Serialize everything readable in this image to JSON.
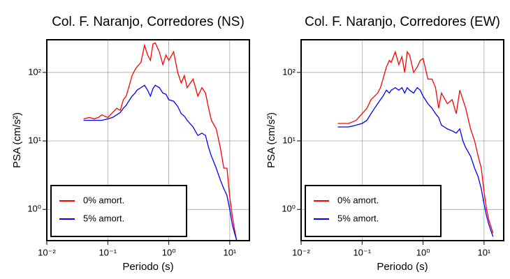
{
  "chart_data": [
    {
      "type": "line",
      "title": "Col. F. Naranjo, Corredores (NS)",
      "x_label": "Periodo (s)",
      "y_label": "PSA (cm/s²)",
      "log_x": true,
      "log_y": true,
      "grid": true,
      "legend": "lower-left",
      "xlim": [
        0.01,
        21
      ],
      "ylim": [
        0.35,
        300
      ],
      "xticks": [
        {
          "value": 0.01,
          "label": "10⁻²"
        },
        {
          "value": 0.1,
          "label": "10⁻¹"
        },
        {
          "value": 1,
          "label": "10⁰"
        },
        {
          "value": 10,
          "label": "10¹"
        }
      ],
      "yticks": [
        {
          "value": 1,
          "label": "10⁰"
        },
        {
          "value": 10,
          "label": "10¹"
        },
        {
          "value": 100,
          "label": "10²"
        }
      ],
      "x": [
        0.04,
        0.05,
        0.06,
        0.07,
        0.08,
        0.1,
        0.12,
        0.14,
        0.16,
        0.18,
        0.2,
        0.22,
        0.25,
        0.28,
        0.3,
        0.35,
        0.4,
        0.45,
        0.5,
        0.55,
        0.6,
        0.7,
        0.8,
        0.9,
        1.0,
        1.2,
        1.4,
        1.6,
        1.8,
        2.0,
        2.5,
        3,
        3.5,
        4,
        4.5,
        5,
        6,
        7,
        8,
        9,
        10,
        11,
        12,
        13
      ],
      "series": [
        {
          "name": "0% amort.",
          "color": "#ff0000",
          "values": [
            21,
            22,
            21,
            22,
            24,
            22,
            26,
            30,
            28,
            40,
            45,
            60,
            90,
            110,
            120,
            140,
            250,
            180,
            150,
            260,
            270,
            200,
            130,
            180,
            150,
            200,
            100,
            70,
            90,
            60,
            80,
            45,
            60,
            50,
            30,
            20,
            15,
            8,
            4,
            4,
            1.5,
            0.8,
            0.5,
            0.35
          ]
        },
        {
          "name": "5% amort.",
          "color": "#0000ff",
          "values": [
            20,
            20,
            20,
            20,
            20,
            21,
            22,
            24,
            26,
            30,
            33,
            38,
            45,
            50,
            55,
            60,
            65,
            55,
            45,
            58,
            65,
            60,
            50,
            48,
            40,
            38,
            32,
            25,
            23,
            20,
            16,
            12,
            13,
            12,
            8,
            6,
            4,
            2.7,
            2,
            1.6,
            1,
            0.6,
            0.45,
            0.35
          ]
        }
      ]
    },
    {
      "type": "line",
      "title": "Col. F. Naranjo, Corredores (EW)",
      "x_label": "Periodo (s)",
      "y_label": "PSA (cm/s²)",
      "log_x": true,
      "log_y": true,
      "grid": true,
      "legend": "lower-left",
      "xlim": [
        0.01,
        21
      ],
      "ylim": [
        0.35,
        300
      ],
      "xticks": [
        {
          "value": 0.01,
          "label": "10⁻²"
        },
        {
          "value": 0.1,
          "label": "10⁻¹"
        },
        {
          "value": 1,
          "label": "10⁰"
        },
        {
          "value": 10,
          "label": "10¹"
        }
      ],
      "yticks": [
        {
          "value": 1,
          "label": "10⁰"
        },
        {
          "value": 10,
          "label": "10¹"
        },
        {
          "value": 100,
          "label": "10²"
        }
      ],
      "x": [
        0.04,
        0.05,
        0.06,
        0.07,
        0.08,
        0.1,
        0.12,
        0.14,
        0.16,
        0.18,
        0.2,
        0.22,
        0.25,
        0.28,
        0.3,
        0.35,
        0.4,
        0.45,
        0.5,
        0.55,
        0.6,
        0.7,
        0.8,
        0.9,
        1.0,
        1.2,
        1.4,
        1.6,
        1.8,
        2.0,
        2.5,
        3,
        3.5,
        4,
        4.5,
        5,
        6,
        7,
        8,
        9,
        10,
        11,
        12,
        14
      ],
      "series": [
        {
          "name": "0% amort.",
          "color": "#ff0000",
          "values": [
            18,
            18,
            18,
            19,
            20,
            25,
            30,
            40,
            45,
            50,
            60,
            80,
            120,
            150,
            140,
            200,
            130,
            170,
            100,
            200,
            180,
            100,
            120,
            150,
            160,
            80,
            80,
            60,
            30,
            50,
            35,
            40,
            25,
            55,
            40,
            30,
            15,
            10,
            6,
            4,
            1.8,
            1,
            0.7,
            0.45
          ]
        },
        {
          "name": "5% amort.",
          "color": "#0000ff",
          "values": [
            16,
            16,
            16,
            16.5,
            17,
            18,
            20,
            25,
            30,
            35,
            40,
            45,
            55,
            50,
            55,
            60,
            55,
            60,
            50,
            60,
            55,
            50,
            60,
            55,
            45,
            35,
            30,
            25,
            22,
            17,
            15,
            14,
            13,
            15,
            10,
            8,
            6,
            4,
            3,
            2,
            1.2,
            0.8,
            0.6,
            0.4
          ]
        }
      ]
    }
  ]
}
